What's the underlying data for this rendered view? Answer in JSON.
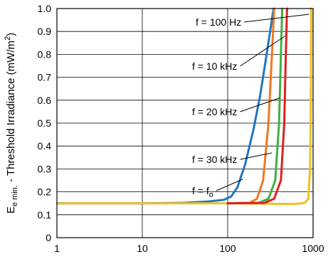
{
  "chart_data": {
    "type": "line",
    "x_scale": "log",
    "xlim": [
      1,
      1000
    ],
    "ylim": [
      0,
      1.0
    ],
    "x_ticks": [
      {
        "value": 1,
        "label": "1"
      },
      {
        "value": 10,
        "label": "10"
      },
      {
        "value": 100,
        "label": "100"
      },
      {
        "value": 1000,
        "label": "1000"
      }
    ],
    "y_ticks": [
      {
        "value": 0,
        "label": "0"
      },
      {
        "value": 0.1,
        "label": "0.1"
      },
      {
        "value": 0.2,
        "label": "0.2"
      },
      {
        "value": 0.3,
        "label": "0.3"
      },
      {
        "value": 0.4,
        "label": "0.4"
      },
      {
        "value": 0.5,
        "label": "0.5"
      },
      {
        "value": 0.6,
        "label": "0.6"
      },
      {
        "value": 0.7,
        "label": "0.7"
      },
      {
        "value": 0.8,
        "label": "0.8"
      },
      {
        "value": 0.9,
        "label": "0.9"
      },
      {
        "value": 1.0,
        "label": "1.0"
      }
    ],
    "ylabel": {
      "main": "E",
      "sub": "e min.",
      "rest": " - Threshold Irradiance (mW/m",
      "sup": "2",
      "end": ")"
    },
    "xlabel": "",
    "grid": true,
    "series": [
      {
        "color": "#1f77c0",
        "points": [
          [
            1,
            0.15
          ],
          [
            10,
            0.15
          ],
          [
            30,
            0.152
          ],
          [
            60,
            0.158
          ],
          [
            90,
            0.165
          ],
          [
            110,
            0.18
          ],
          [
            130,
            0.22
          ],
          [
            160,
            0.32
          ],
          [
            200,
            0.47
          ],
          [
            240,
            0.62
          ],
          [
            280,
            0.78
          ],
          [
            320,
            0.92
          ],
          [
            345,
            1.0
          ]
        ]
      },
      {
        "color": "#f0c020",
        "points": [
          [
            1,
            0.15
          ],
          [
            100,
            0.15
          ],
          [
            300,
            0.148
          ],
          [
            600,
            0.147
          ],
          [
            800,
            0.152
          ],
          [
            880,
            0.17
          ],
          [
            920,
            0.3
          ],
          [
            940,
            0.6
          ],
          [
            950,
            1.0
          ]
        ]
      },
      {
        "color": "#f07820",
        "points": [
          [
            100,
            0.15
          ],
          [
            180,
            0.152
          ],
          [
            220,
            0.17
          ],
          [
            260,
            0.25
          ],
          [
            300,
            0.5
          ],
          [
            330,
            0.8
          ],
          [
            350,
            1.0
          ]
        ]
      },
      {
        "color": "#40b040",
        "points": [
          [
            100,
            0.15
          ],
          [
            230,
            0.152
          ],
          [
            300,
            0.17
          ],
          [
            360,
            0.25
          ],
          [
            400,
            0.5
          ],
          [
            420,
            0.8
          ],
          [
            435,
            1.0
          ]
        ]
      },
      {
        "color": "#e02020",
        "points": [
          [
            100,
            0.15
          ],
          [
            270,
            0.152
          ],
          [
            350,
            0.17
          ],
          [
            420,
            0.25
          ],
          [
            460,
            0.5
          ],
          [
            480,
            0.8
          ],
          [
            495,
            1.0
          ]
        ]
      }
    ],
    "annotations": [
      {
        "label": "f = 100 Hz",
        "to": [
          900,
          0.975
        ]
      },
      {
        "label": "f = 10 kHz",
        "to": [
          470,
          0.88
        ]
      },
      {
        "label": "f = 20 kHz",
        "to": [
          410,
          0.61
        ]
      },
      {
        "label": "f = 30 kHz",
        "to": [
          330,
          0.37
        ]
      },
      {
        "label_main": "f = f",
        "label_sub": "o",
        "to": [
          150,
          0.255
        ]
      }
    ]
  }
}
